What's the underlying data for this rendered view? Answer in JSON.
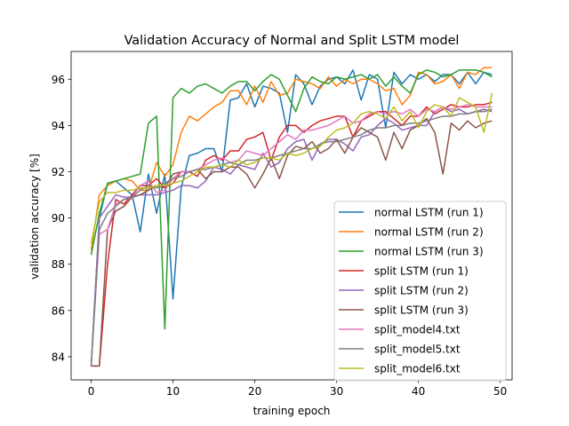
{
  "chart_data": {
    "type": "line",
    "title": "Validation Accuracy of Normal and Split LSTM model",
    "xlabel": "training epoch",
    "ylabel": "validation accuracy [%]",
    "xlim": [
      -2.45,
      51.45
    ],
    "ylim": [
      83.0,
      97.2
    ],
    "xticks": [
      0,
      10,
      20,
      30,
      40,
      50
    ],
    "yticks": [
      84,
      86,
      88,
      90,
      92,
      94,
      96
    ],
    "grid": false,
    "legend_position": "lower-right",
    "x": [
      0,
      1,
      2,
      3,
      4,
      5,
      6,
      7,
      8,
      9,
      10,
      11,
      12,
      13,
      14,
      15,
      16,
      17,
      18,
      19,
      20,
      21,
      22,
      23,
      24,
      25,
      26,
      27,
      28,
      29,
      30,
      31,
      32,
      33,
      34,
      35,
      36,
      37,
      38,
      39,
      40,
      41,
      42,
      43,
      44,
      45,
      46,
      47,
      48,
      49
    ],
    "series": [
      {
        "name": "normal LSTM (run 1)",
        "color": "#1f77b4",
        "values": [
          83.6,
          90.0,
          91.5,
          91.6,
          91.3,
          91.0,
          89.4,
          91.9,
          90.2,
          91.9,
          86.5,
          91.3,
          92.7,
          92.8,
          93.0,
          93.0,
          92.0,
          95.1,
          95.2,
          95.8,
          94.8,
          95.7,
          95.6,
          95.4,
          93.7,
          96.2,
          95.8,
          94.9,
          95.7,
          96.0,
          96.1,
          95.8,
          96.4,
          95.1,
          96.2,
          96.0,
          93.9,
          96.3,
          95.8,
          96.2,
          96.0,
          96.2,
          95.9,
          96.2,
          96.2,
          95.8,
          96.3,
          95.8,
          96.3,
          96.2
        ]
      },
      {
        "name": "normal LSTM (run 2)",
        "color": "#ff7f0e",
        "values": [
          88.6,
          91.0,
          91.4,
          91.6,
          91.7,
          91.6,
          91.2,
          91.2,
          92.4,
          91.8,
          92.3,
          93.7,
          94.4,
          94.2,
          94.5,
          94.8,
          95.0,
          95.5,
          95.5,
          94.9,
          95.7,
          95.0,
          95.9,
          95.3,
          95.4,
          96.0,
          95.9,
          95.8,
          95.6,
          96.1,
          95.7,
          96.0,
          95.8,
          96.0,
          96.0,
          95.8,
          95.5,
          95.6,
          94.9,
          95.3,
          96.3,
          96.2,
          95.8,
          95.9,
          96.2,
          95.6,
          96.3,
          96.2,
          96.5,
          96.5
        ]
      },
      {
        "name": "normal LSTM (run 3)",
        "color": "#2ca02c",
        "values": [
          88.4,
          90.2,
          91.5,
          91.6,
          91.7,
          91.8,
          91.9,
          94.1,
          94.4,
          85.2,
          95.2,
          95.6,
          95.4,
          95.7,
          95.8,
          95.6,
          95.4,
          95.7,
          95.9,
          95.9,
          95.5,
          95.9,
          96.2,
          96.0,
          95.3,
          94.6,
          95.6,
          96.1,
          95.9,
          95.8,
          96.1,
          96.0,
          96.1,
          96.2,
          96.0,
          96.2,
          95.7,
          96.1,
          95.7,
          95.4,
          96.2,
          96.4,
          96.3,
          96.1,
          96.2,
          96.4,
          96.4,
          96.4,
          96.3,
          96.1
        ]
      },
      {
        "name": "split LSTM (run 1)",
        "color": "#d62728",
        "values": [
          83.6,
          83.6,
          88.0,
          90.8,
          90.6,
          91.0,
          91.4,
          91.4,
          91.7,
          91.3,
          91.5,
          92.0,
          92.0,
          91.8,
          92.5,
          92.7,
          92.5,
          92.9,
          92.9,
          93.4,
          93.5,
          93.7,
          92.5,
          93.5,
          94.0,
          94.0,
          93.7,
          94.0,
          94.2,
          94.3,
          94.4,
          94.4,
          93.5,
          94.2,
          94.4,
          94.6,
          94.6,
          94.3,
          94.0,
          94.4,
          94.4,
          94.8,
          94.5,
          94.7,
          94.9,
          94.8,
          94.8,
          94.9,
          94.9,
          95.0
        ]
      },
      {
        "name": "split LSTM (run 2)",
        "color": "#9467bd",
        "values": [
          83.6,
          90.0,
          90.5,
          91.0,
          90.9,
          90.9,
          91.0,
          91.0,
          91.0,
          91.1,
          91.2,
          91.4,
          91.4,
          91.3,
          91.6,
          92.2,
          92.1,
          91.9,
          92.3,
          92.2,
          92.1,
          92.8,
          92.2,
          92.4,
          93.0,
          93.3,
          93.4,
          92.5,
          93.2,
          93.4,
          93.4,
          93.2,
          92.9,
          93.5,
          93.6,
          94.0,
          94.3,
          94.1,
          93.8,
          93.9,
          94.0,
          94.0,
          94.6,
          94.8,
          94.6,
          94.7,
          94.5,
          94.6,
          94.7,
          94.6
        ]
      },
      {
        "name": "split LSTM (run 3)",
        "color": "#8c564b",
        "values": [
          83.6,
          83.6,
          89.5,
          90.3,
          90.5,
          90.9,
          91.0,
          91.2,
          91.4,
          91.3,
          91.9,
          92.0,
          92.0,
          92.1,
          91.7,
          92.0,
          92.0,
          92.2,
          92.2,
          91.9,
          91.3,
          91.9,
          92.6,
          91.7,
          92.7,
          93.1,
          93.0,
          93.3,
          92.8,
          93.0,
          93.4,
          92.8,
          93.5,
          93.9,
          93.7,
          93.5,
          92.5,
          93.7,
          93.0,
          93.8,
          94.0,
          94.3,
          93.7,
          91.9,
          94.1,
          93.8,
          94.2,
          93.9,
          94.1,
          94.2
        ]
      },
      {
        "name": "split_model4.txt",
        "color": "#e377c2",
        "values": [
          83.6,
          89.3,
          89.5,
          90.6,
          90.8,
          90.9,
          91.4,
          91.6,
          91.1,
          91.2,
          91.7,
          92.0,
          92.0,
          92.1,
          92.3,
          92.5,
          92.6,
          92.4,
          92.5,
          92.9,
          92.8,
          92.7,
          93.0,
          93.3,
          93.6,
          93.4,
          93.8,
          93.8,
          93.9,
          94.0,
          94.2,
          94.4,
          94.1,
          94.2,
          94.5,
          94.6,
          94.5,
          94.6,
          94.5,
          94.7,
          94.4,
          94.7,
          94.6,
          94.8,
          94.7,
          94.8,
          94.9,
          94.8,
          94.8,
          94.8
        ]
      },
      {
        "name": "split_model5.txt",
        "color": "#7f7f7f",
        "values": [
          83.6,
          89.5,
          90.2,
          90.5,
          90.8,
          90.9,
          91.2,
          91.4,
          91.3,
          91.5,
          91.7,
          91.8,
          92.0,
          92.1,
          92.1,
          92.2,
          92.3,
          92.4,
          92.3,
          92.5,
          92.5,
          92.6,
          92.6,
          92.7,
          92.8,
          92.9,
          93.0,
          93.0,
          93.2,
          93.3,
          93.3,
          93.4,
          93.5,
          93.6,
          93.8,
          93.9,
          93.9,
          94.0,
          94.0,
          94.1,
          94.1,
          94.2,
          94.3,
          94.4,
          94.4,
          94.5,
          94.5,
          94.6,
          94.6,
          94.7
        ]
      },
      {
        "name": "split_model6.txt",
        "color": "#bcbd22",
        "values": [
          88.9,
          90.7,
          91.1,
          91.1,
          91.2,
          91.2,
          91.3,
          91.3,
          91.4,
          91.4,
          91.5,
          91.6,
          91.8,
          92.0,
          92.2,
          92.2,
          92.3,
          92.2,
          92.5,
          92.3,
          92.4,
          92.6,
          92.6,
          92.5,
          92.8,
          92.7,
          92.8,
          93.0,
          93.1,
          93.5,
          93.8,
          93.9,
          94.1,
          94.5,
          94.6,
          94.5,
          94.3,
          94.8,
          94.2,
          94.6,
          93.9,
          94.6,
          94.9,
          94.8,
          94.4,
          95.2,
          95.0,
          94.8,
          93.7,
          95.4
        ]
      }
    ]
  }
}
